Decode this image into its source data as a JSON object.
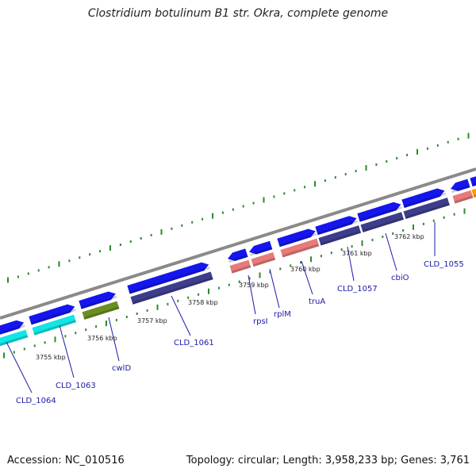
{
  "title": "Clostridium botulinum B1 str. Okra, complete genome",
  "footer": {
    "accession": "Accession: NC_010516",
    "topology": "Topology: circular; Length: 3,958,233 bp; Genes: 3,761"
  },
  "colors": {
    "backbone": "#8a8a8a",
    "tick": "#2d8a2d",
    "cds_blue": "#1515ee",
    "cds_navy": "#3d3d8c",
    "cds_pink": "#e77a7a",
    "cds_cyan": "#11e5e5",
    "cds_olive": "#6b8e23",
    "cds_orange": "#ff9900",
    "label": "#1a1aa8"
  },
  "kbp_marks": [
    "3755 kbp",
    "3756 kbp",
    "3757 kbp",
    "3758 kbp",
    "3759 kbp",
    "3760 kbp",
    "3761 kbp",
    "3762 kbp"
  ],
  "gene_labels": [
    "CLD_1064",
    "CLD_1063",
    "cwlD",
    "CLD_1061",
    "rpsI",
    "rplM",
    "truA",
    "CLD_1057",
    "cbiO",
    "CLD_1055"
  ]
}
